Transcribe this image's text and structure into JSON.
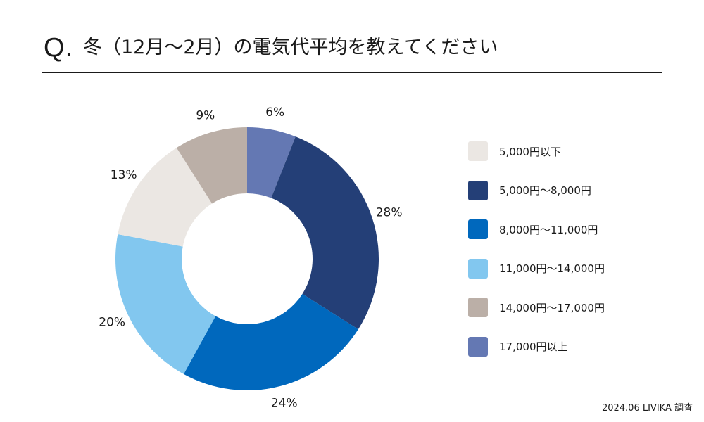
{
  "header": {
    "q_mark": "Q.",
    "title": "冬（12月〜2月）の電気代平均を教えてください"
  },
  "chart_data": {
    "type": "pie",
    "variant": "donut",
    "title": "冬（12月〜2月）の電気代平均を教えてください",
    "categories": [
      "5,000円以下",
      "5,000円〜8,000円",
      "8,000円〜11,000円",
      "11,000円〜14,000円",
      "14,000円〜17,000円",
      "17,000円以上"
    ],
    "values": [
      13,
      28,
      24,
      20,
      9,
      6
    ],
    "unit": "%",
    "labels": [
      "13%",
      "28%",
      "24%",
      "20%",
      "9%",
      "6%"
    ],
    "colors": [
      "#ebe7e3",
      "#243f77",
      "#0068bd",
      "#82c7ef",
      "#bbafa7",
      "#6478b3"
    ],
    "order_clockwise_from_top": [
      5,
      1,
      2,
      3,
      0,
      4
    ],
    "legend_position": "right"
  },
  "footer": {
    "source": "2024.06 LIVIKA 調査"
  }
}
